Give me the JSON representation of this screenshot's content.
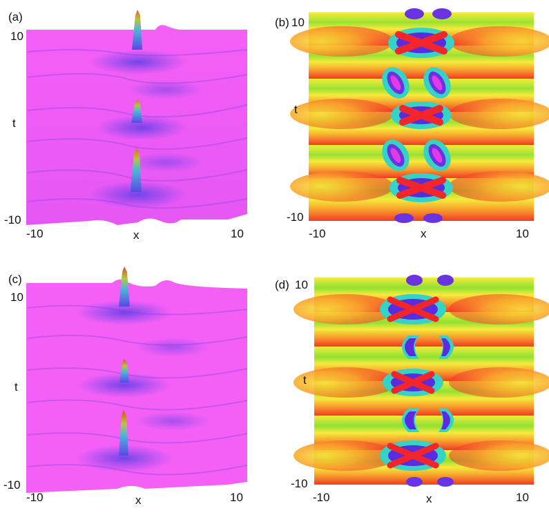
{
  "panels": [
    {
      "letter": "(a)",
      "y_top": "10",
      "y_bottom": "-10",
      "y_label": "t",
      "x_left": "-10",
      "x_center": "x",
      "x_right": "10"
    },
    {
      "letter": "(b)",
      "y_top": "10",
      "y_bottom": "-10",
      "y_label": "t",
      "x_left": "-10",
      "x_center": "x",
      "x_right": "10"
    },
    {
      "letter": "(c)",
      "y_top": "10",
      "y_bottom": "-10",
      "y_label": "t",
      "x_left": "-10",
      "x_center": "x",
      "x_right": "10"
    },
    {
      "letter": "(d)",
      "y_top": "10",
      "y_bottom": "-10",
      "y_label": "t",
      "x_left": "-10",
      "x_center": "x",
      "x_right": "10"
    }
  ],
  "colors": {
    "surface": "#f25ff5",
    "surface_shade": "#7a4bf0",
    "peak_top": "#d96a2a",
    "peak_mid": "#3fa0d8",
    "density_red": "#f2262a",
    "density_orange": "#f78a2a",
    "density_yellow": "#f4e23a",
    "density_green": "#7ee02e",
    "density_cyan": "#2fd6c8",
    "density_blue": "#5b2ce0",
    "density_magenta": "#e23ae6"
  }
}
